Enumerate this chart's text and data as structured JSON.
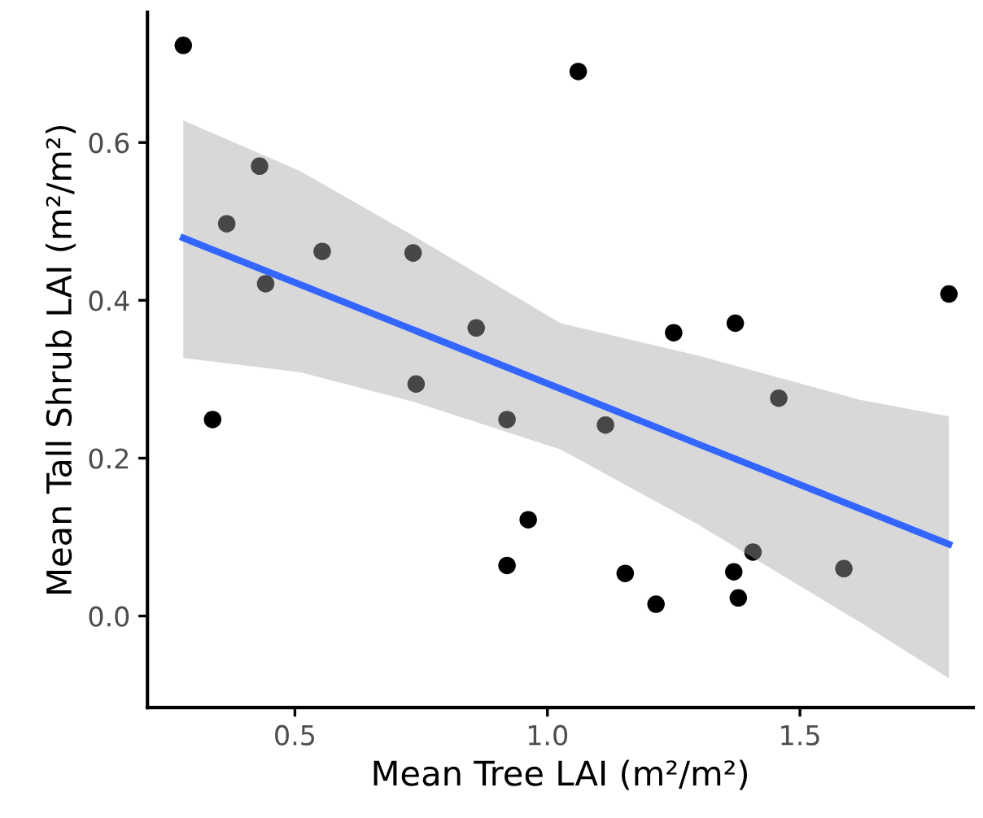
{
  "chart_data": {
    "type": "scatter",
    "xlabel": "Mean Tree LAI (m²/m²)",
    "ylabel": "Mean Tall Shrub LAI (m²/m²)",
    "xlim": [
      0.208,
      1.843
    ],
    "ylim": [
      -0.116,
      0.765
    ],
    "xticks": [
      {
        "value": 0.5,
        "label": "0.5"
      },
      {
        "value": 1.0,
        "label": "1.0"
      },
      {
        "value": 1.5,
        "label": "1.5"
      }
    ],
    "yticks": [
      {
        "value": 0.0,
        "label": "0.0"
      },
      {
        "value": 0.2,
        "label": "0.2"
      },
      {
        "value": 0.4,
        "label": "0.4"
      },
      {
        "value": 0.6,
        "label": "0.6"
      }
    ],
    "grid": false,
    "series": [
      {
        "color": "#000000",
        "marker": "circle",
        "x": [
          0.279,
          0.337,
          0.365,
          0.43,
          0.442,
          0.554,
          0.734,
          0.74,
          0.859,
          0.92,
          0.92,
          0.962,
          1.061,
          1.115,
          1.154,
          1.215,
          1.25,
          1.372,
          1.369,
          1.378,
          1.407,
          1.458,
          1.587,
          1.795
        ],
        "values": [
          0.723,
          0.249,
          0.497,
          0.57,
          0.421,
          0.462,
          0.46,
          0.294,
          0.365,
          0.249,
          0.064,
          0.122,
          0.69,
          0.242,
          0.054,
          0.015,
          0.359,
          0.371,
          0.056,
          0.023,
          0.081,
          0.276,
          0.06,
          0.408
        ]
      },
      {
        "type": "line",
        "color": "#3366ff",
        "line_style": "solid",
        "x": [
          0.279,
          0.51,
          0.737,
          1.026,
          1.298,
          1.619,
          1.795
        ],
        "values": [
          0.479,
          0.42,
          0.362,
          0.288,
          0.218,
          0.136,
          0.091
        ],
        "lower": [
          0.327,
          0.309,
          0.271,
          0.211,
          0.116,
          -0.008,
          -0.079
        ],
        "upper": [
          0.628,
          0.564,
          0.481,
          0.371,
          0.33,
          0.274,
          0.253
        ]
      }
    ]
  }
}
